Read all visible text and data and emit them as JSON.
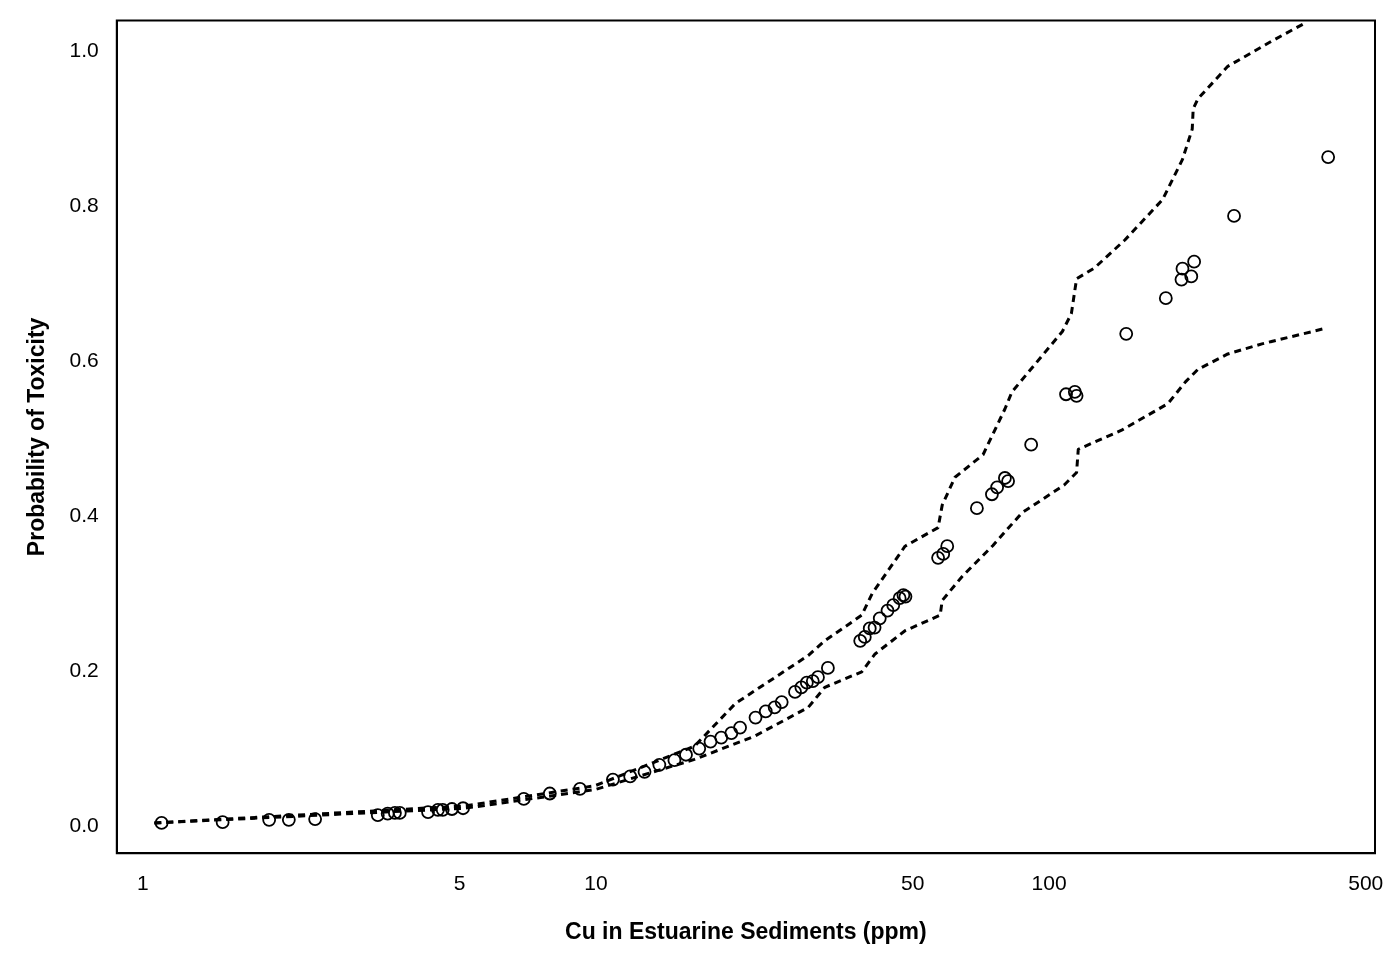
{
  "chart_data": {
    "type": "scatter",
    "xlabel": "Cu in Estuarine Sediments (ppm)",
    "ylabel": "Probability of Toxicity",
    "log": "x",
    "grid": false,
    "legend": false,
    "marker": "circle",
    "xlim": [
      0.876,
      524
    ],
    "xticks": [
      1,
      5,
      10,
      50,
      100,
      500
    ],
    "ylim": [
      -0.035,
      1.039
    ],
    "yticks": [
      {
        "value": 0,
        "label": "0.0"
      },
      {
        "value": 0.2,
        "label": "0.2"
      },
      {
        "value": 0.4,
        "label": "0.4"
      },
      {
        "value": 0.6,
        "label": "0.6"
      },
      {
        "value": 0.8,
        "label": "0.8"
      },
      {
        "value": 1,
        "label": "1.0"
      }
    ],
    "series": [
      {
        "color": "#000000",
        "x": [
          1.1,
          1.5,
          1.9,
          2.1,
          2.4,
          3.3,
          3.47,
          3.6,
          3.69,
          4.26,
          4.48,
          4.59,
          4.81,
          5.09,
          6.93,
          7.91,
          9.22,
          10.9,
          11.9,
          12.8,
          13.8,
          14.9,
          15.8,
          16.9,
          17.9,
          18.9,
          19.9,
          20.8,
          22.5,
          23.7,
          24.8,
          25.7,
          27.5,
          28.4,
          29.2,
          30.1,
          30.9,
          32.5,
          38.3,
          39.2,
          40.2,
          41.2,
          42.3,
          44.0,
          45.3,
          46.8,
          47.7,
          48.2,
          56.9,
          58.4,
          59.6,
          69.3,
          74.8,
          76.8,
          79.9,
          81.2,
          91.3,
          109,
          114,
          115,
          148,
          181,
          196,
          197,
          206,
          209,
          256,
          413
        ],
        "values": [
          0.004,
          0.005,
          0.008,
          0.008,
          0.009,
          0.014,
          0.016,
          0.017,
          0.017,
          0.018,
          0.021,
          0.021,
          0.022,
          0.023,
          0.035,
          0.042,
          0.048,
          0.06,
          0.064,
          0.07,
          0.079,
          0.085,
          0.092,
          0.1,
          0.109,
          0.114,
          0.12,
          0.127,
          0.14,
          0.148,
          0.153,
          0.16,
          0.173,
          0.179,
          0.185,
          0.187,
          0.192,
          0.204,
          0.239,
          0.244,
          0.255,
          0.256,
          0.268,
          0.278,
          0.285,
          0.294,
          0.298,
          0.296,
          0.346,
          0.351,
          0.361,
          0.41,
          0.428,
          0.437,
          0.449,
          0.445,
          0.492,
          0.557,
          0.56,
          0.555,
          0.635,
          0.681,
          0.705,
          0.719,
          0.709,
          0.728,
          0.787,
          0.863
        ]
      },
      {
        "type": "line",
        "color": "#000000",
        "line_style": "dashed",
        "marker": "none",
        "x": [
          1.06,
          5.14,
          9.95,
          16.5,
          20.3,
          29.4,
          32.0,
          38.6,
          40.7,
          48.1,
          56.9,
          58.1,
          62.0,
          71.5,
          79.9,
          82.8,
          107,
          112,
          115,
          126,
          147,
          178,
          197,
          207,
          208,
          213,
          248,
          311,
          365
        ],
        "values": [
          0.004,
          0.026,
          0.052,
          0.103,
          0.158,
          0.22,
          0.239,
          0.272,
          0.3,
          0.361,
          0.385,
          0.414,
          0.45,
          0.479,
          0.538,
          0.56,
          0.638,
          0.661,
          0.706,
          0.72,
          0.756,
          0.808,
          0.86,
          0.899,
          0.925,
          0.938,
          0.98,
          1.013,
          1.035
        ]
      },
      {
        "type": "line",
        "color": "#000000",
        "line_style": "dashed",
        "marker": "none",
        "x": [
          1.06,
          5.14,
          9.95,
          16.5,
          22.4,
          29.4,
          32.0,
          38.6,
          41.3,
          48.1,
          57.5,
          58.1,
          64.3,
          75.2,
          87.1,
          108,
          115,
          116,
          145,
          183,
          200,
          213,
          248,
          295,
          407
        ],
        "values": [
          0.004,
          0.023,
          0.047,
          0.086,
          0.116,
          0.153,
          0.179,
          0.199,
          0.222,
          0.252,
          0.272,
          0.291,
          0.322,
          0.362,
          0.404,
          0.44,
          0.456,
          0.486,
          0.511,
          0.545,
          0.573,
          0.589,
          0.609,
          0.622,
          0.642
        ]
      }
    ]
  }
}
